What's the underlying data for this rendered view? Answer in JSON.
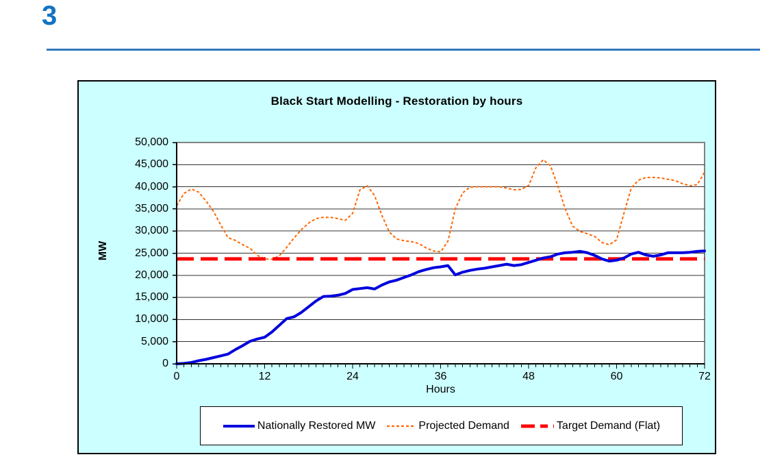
{
  "slide": {
    "number": "3"
  },
  "colors": {
    "slide_number_blue": "#1273C2",
    "divider_blue": "#3478BE",
    "chart_background": "#CCFFFF",
    "plot_background": "#FFFFFF",
    "restored_line": "#0000DD",
    "projected_line": "#FF6600",
    "target_line": "#FF0000"
  },
  "chart_data": {
    "type": "line",
    "title": "Black Start Modelling - Restoration by hours",
    "xlabel": "Hours",
    "ylabel": "MW",
    "xlim": [
      0,
      72
    ],
    "ylim": [
      0,
      50000
    ],
    "grid": "horizontal-only",
    "legend_position": "bottom",
    "x_ticks": [
      0,
      12,
      24,
      36,
      48,
      60,
      72
    ],
    "x_minor_tick_interval": 1,
    "y_tick_interval": 5000,
    "y_tick_labels": [
      "0",
      "5,000",
      "10,000",
      "15,000",
      "20,000",
      "25,000",
      "30,000",
      "35,000",
      "40,000",
      "45,000",
      "50,000"
    ],
    "x": [
      0,
      1,
      2,
      3,
      4,
      5,
      6,
      7,
      8,
      9,
      10,
      11,
      12,
      13,
      14,
      15,
      16,
      17,
      18,
      19,
      20,
      21,
      22,
      23,
      24,
      25,
      26,
      27,
      28,
      29,
      30,
      31,
      32,
      33,
      34,
      35,
      36,
      37,
      38,
      39,
      40,
      41,
      42,
      43,
      44,
      45,
      46,
      47,
      48,
      49,
      50,
      51,
      52,
      53,
      54,
      55,
      56,
      57,
      58,
      59,
      60,
      61,
      62,
      63,
      64,
      65,
      66,
      67,
      68,
      69,
      70,
      71,
      72
    ],
    "series": [
      {
        "name": "Nationally Restored MW",
        "style": "solid",
        "color": "#0000DD",
        "width": 4,
        "values": [
          0,
          100,
          300,
          700,
          1000,
          1400,
          1800,
          2200,
          3200,
          4100,
          5100,
          5600,
          6000,
          7200,
          8700,
          10200,
          10600,
          11600,
          12900,
          14200,
          15200,
          15300,
          15500,
          15900,
          16800,
          17000,
          17200,
          16900,
          17800,
          18500,
          18900,
          19500,
          20100,
          20800,
          21300,
          21700,
          21900,
          22200,
          20100,
          20700,
          21100,
          21400,
          21600,
          21900,
          22200,
          22500,
          22200,
          22400,
          22900,
          23400,
          23900,
          24200,
          24800,
          25100,
          25200,
          25400,
          25100,
          24500,
          23700,
          23200,
          23400,
          23900,
          24800,
          25200,
          24600,
          24300,
          24600,
          25100,
          25100,
          25100,
          25200,
          25400,
          25500
        ]
      },
      {
        "name": "Projected Demand",
        "style": "dashed",
        "color": "#FF6600",
        "width": 2,
        "values": [
          35700,
          38500,
          39500,
          38800,
          36800,
          34500,
          31400,
          28500,
          27900,
          26900,
          26100,
          24500,
          23700,
          23600,
          24400,
          26300,
          28400,
          30300,
          31800,
          32800,
          33100,
          33100,
          32800,
          32400,
          34000,
          39300,
          40200,
          38000,
          33500,
          29800,
          28200,
          27800,
          27600,
          27200,
          26200,
          25500,
          25300,
          27700,
          35000,
          38600,
          39900,
          40000,
          40000,
          40000,
          40000,
          39700,
          39300,
          39400,
          40300,
          44300,
          46100,
          44700,
          40100,
          35000,
          31100,
          29900,
          29400,
          28800,
          27400,
          26900,
          28000,
          34000,
          39700,
          41500,
          42100,
          42100,
          42000,
          41700,
          41400,
          40700,
          40200,
          40500,
          43300
        ]
      },
      {
        "name": "Target Demand (Flat)",
        "style": "long-dash",
        "color": "#FF0000",
        "width": 5,
        "flat_value": 23700
      }
    ]
  }
}
